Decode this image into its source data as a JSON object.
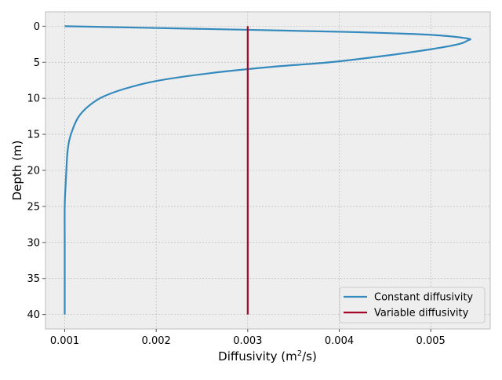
{
  "chart_data": {
    "type": "line",
    "title": "",
    "xlabel": "Diffusivity (m",
    "xlabel_sup": "2",
    "xlabel_end": "/s)",
    "ylabel": "Depth (m)",
    "xlim": [
      0.00079,
      0.00565
    ],
    "ylim": [
      42,
      -2
    ],
    "y_inverted": true,
    "xticks": [
      0.001,
      0.002,
      0.003,
      0.004,
      0.005
    ],
    "xtick_labels": [
      "0.001",
      "0.002",
      "0.003",
      "0.004",
      "0.005"
    ],
    "yticks": [
      0,
      5,
      10,
      15,
      20,
      25,
      30,
      35,
      40
    ],
    "ytick_labels": [
      "0",
      "5",
      "10",
      "15",
      "20",
      "25",
      "30",
      "35",
      "40"
    ],
    "grid": true,
    "background": "#EEEEEE",
    "legend_position": "lower-right",
    "series": [
      {
        "name": "Constant diffusivity",
        "color": "#348ABD",
        "points": [
          [
            0.001,
            0.0
          ],
          [
            0.0018,
            0.2
          ],
          [
            0.003,
            0.5
          ],
          [
            0.0041,
            0.8
          ],
          [
            0.005,
            1.2
          ],
          [
            0.0054,
            1.7
          ],
          [
            0.0054,
            2.0
          ],
          [
            0.0053,
            2.5
          ],
          [
            0.005,
            3.2
          ],
          [
            0.0045,
            4.1
          ],
          [
            0.0039,
            5.0
          ],
          [
            0.0033,
            5.6
          ],
          [
            0.0026,
            6.5
          ],
          [
            0.002,
            7.6
          ],
          [
            0.00165,
            8.7
          ],
          [
            0.0014,
            9.9
          ],
          [
            0.00125,
            11.2
          ],
          [
            0.00115,
            12.6
          ],
          [
            0.00109,
            14.2
          ],
          [
            0.00105,
            15.8
          ],
          [
            0.00103,
            17.5
          ],
          [
            0.00102,
            19.5
          ],
          [
            0.00101,
            22.0
          ],
          [
            0.001,
            25.0
          ],
          [
            0.001,
            30.0
          ],
          [
            0.001,
            35.0
          ],
          [
            0.001,
            40.0
          ]
        ]
      },
      {
        "name": "Variable diffusivity",
        "color": "#A60628",
        "points": [
          [
            0.003,
            0.0
          ],
          [
            0.003,
            40.0
          ]
        ]
      }
    ]
  }
}
